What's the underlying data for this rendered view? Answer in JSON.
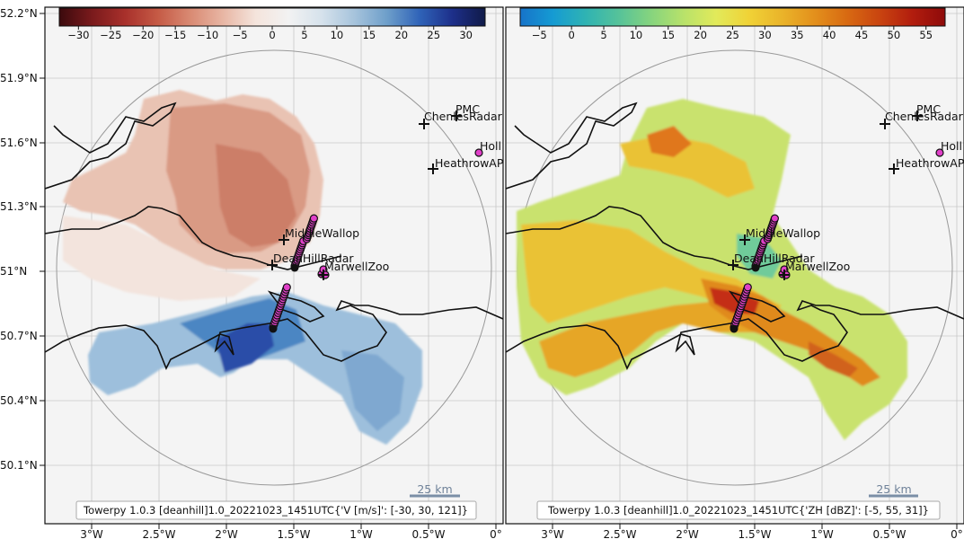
{
  "panels": [
    {
      "id": "left",
      "variable": "V [m/s]",
      "footer": "Towerpy 1.0.3  [deanhill]1.0_20221023_1451UTC{'V [m/s]': [-30, 30, 121]}",
      "colorbar": {
        "ticks": [
          "−30",
          "−25",
          "−20",
          "−15",
          "−10",
          "−5",
          "0",
          "5",
          "10",
          "15",
          "20",
          "25",
          "30"
        ],
        "colors": [
          "#3b0a0d",
          "#7a1a1c",
          "#a8302b",
          "#c55a45",
          "#d98a73",
          "#e8b6a4",
          "#f4e4dc",
          "#f2f2f2",
          "#d6e2ec",
          "#a7c4dc",
          "#6e9fca",
          "#2f63b8",
          "#1d2f8a",
          "#101a48"
        ]
      }
    },
    {
      "id": "right",
      "variable": "ZH [dBZ]",
      "footer": "Towerpy 1.0.3  [deanhill]1.0_20221023_1451UTC{'ZH [dBZ]': [-5, 55, 31]}",
      "colorbar": {
        "ticks": [
          "−5",
          "0",
          "5",
          "10",
          "15",
          "20",
          "25",
          "30",
          "35",
          "40",
          "45",
          "50",
          "55"
        ],
        "colors": [
          "#1673c9",
          "#159bd3",
          "#2fb3b3",
          "#55c29a",
          "#86d47e",
          "#b8e26a",
          "#e2ea5a",
          "#f0d236",
          "#eab42a",
          "#e3901c",
          "#d86a12",
          "#c94410",
          "#b21d0e",
          "#8e0a0a"
        ]
      }
    }
  ],
  "y_ticks": [
    "52.2°N",
    "51.9°N",
    "51.6°N",
    "51.3°N",
    "51°N",
    "50.7°N",
    "50.4°N",
    "50.1°N"
  ],
  "x_ticks": [
    "3°W",
    "2.5°W",
    "2°W",
    "1.5°W",
    "1°W",
    "0.5°W",
    "0°"
  ],
  "sites": [
    "MiddleWallop",
    "DeanHillRadar",
    "MarwellZoo",
    "PMC",
    "ChenlesRadar",
    "HeathrowAP",
    "Holl"
  ],
  "scale_bar": "25 km",
  "colors": {
    "frame": "#111111",
    "background": "#f4f4f4",
    "coast": "#111111",
    "marker_pink": "#e040c8"
  }
}
